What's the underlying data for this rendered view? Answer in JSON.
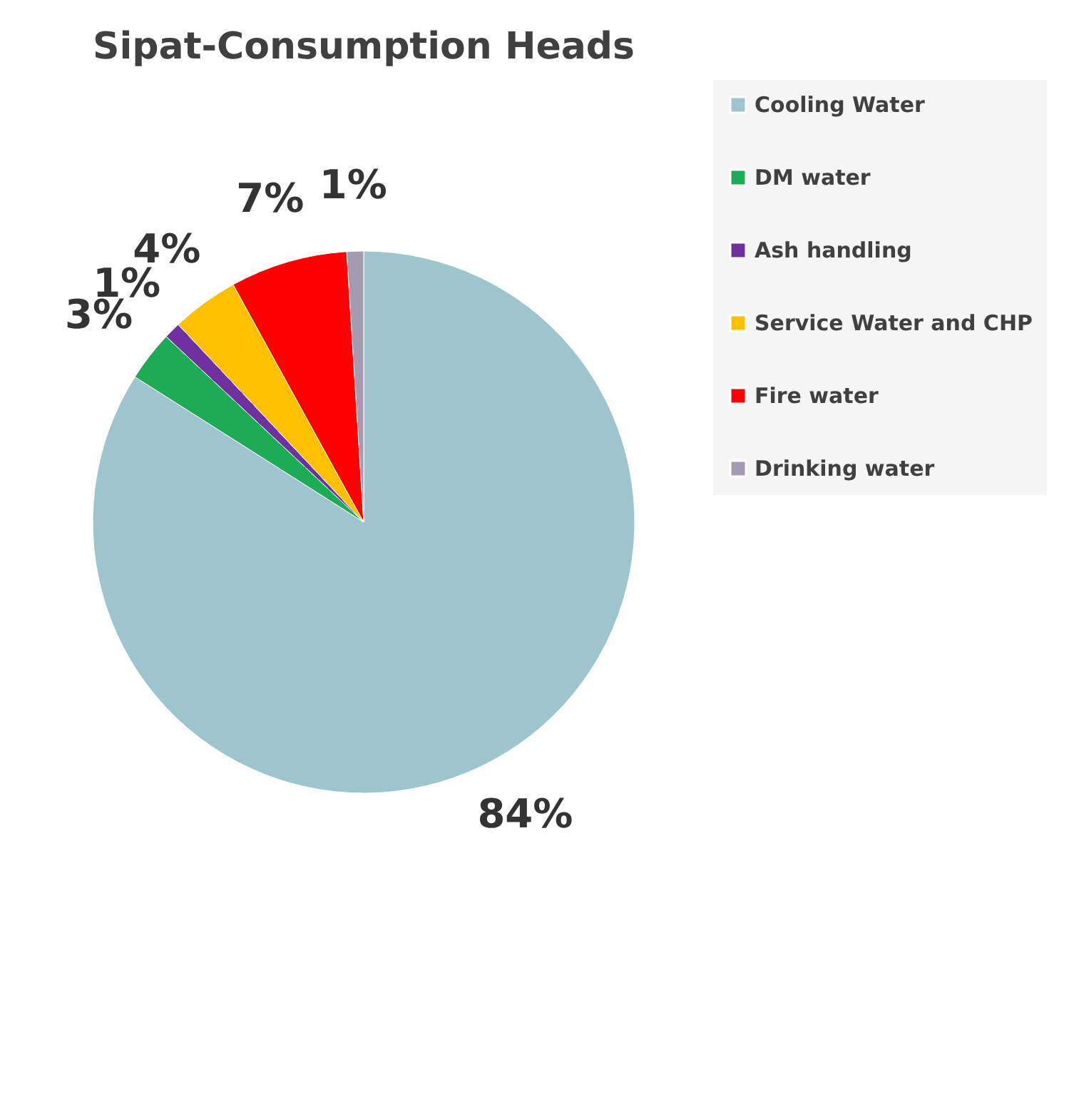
{
  "chart_data": {
    "type": "pie",
    "title": "Sipat-Consumption Heads",
    "categories": [
      "Cooling Water",
      "DM water",
      "Ash handling",
      "Service Water and CHP",
      "Fire water",
      "Drinking water"
    ],
    "values": [
      84,
      3,
      1,
      4,
      7,
      1
    ],
    "value_labels": [
      "84%",
      "3%",
      "1%",
      "4%",
      "7%",
      "1%"
    ],
    "colors": [
      "#9ec5cd",
      "#1dab55",
      "#7030a0",
      "#ffc000",
      "#ff0000",
      "#a59bb1"
    ],
    "legend": "right"
  }
}
